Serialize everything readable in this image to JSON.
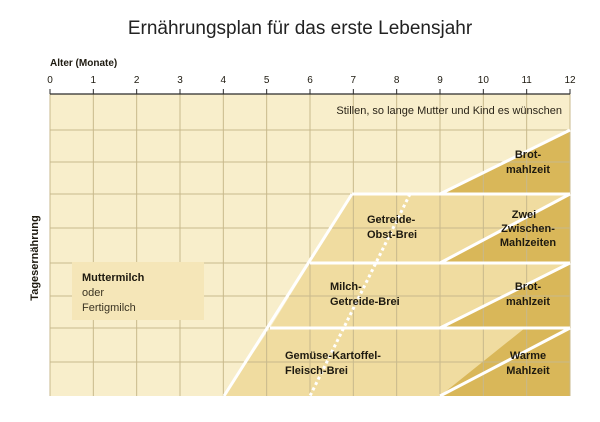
{
  "title": "Ernährungsplan für das erste Lebensjahr",
  "x_axis": {
    "label": "Alter (Monate)",
    "ticks": [
      "0",
      "1",
      "2",
      "3",
      "4",
      "5",
      "6",
      "7",
      "8",
      "9",
      "10",
      "11",
      "12"
    ]
  },
  "y_axis": {
    "label": "Tagesernährung"
  },
  "banner": "Stillen, so lange Mutter und Kind es wünschen",
  "milk": {
    "line1": "Muttermilch",
    "line2": "oder",
    "line3": "Fertigmilch"
  },
  "bands": [
    {
      "mid_line1": "Gemüse-Kartoffel-",
      "mid_line2": "Fleisch-Brei",
      "end_line1": "Warme",
      "end_line2": "Mahlzeit"
    },
    {
      "mid_line1": "Milch-",
      "mid_line2": "Getreide-Brei",
      "end_line1": "Brot-",
      "end_line2": "mahlzeit"
    },
    {
      "mid_line1": "Getreide-",
      "mid_line2": "Obst-Brei",
      "end_line1": "Zwei",
      "end_line2": "Zwischen-",
      "end_line3": "Mahlzeiten"
    },
    {
      "end_line1": "Brot-",
      "end_line2": "mahlzeit"
    }
  ],
  "colors": {
    "background": "#f8eecb",
    "grid": "#c8b98c",
    "band_light": "#f0dca0",
    "band_dark": "#d9b759",
    "separator": "#ffffff",
    "text": "#1e1a10"
  }
}
